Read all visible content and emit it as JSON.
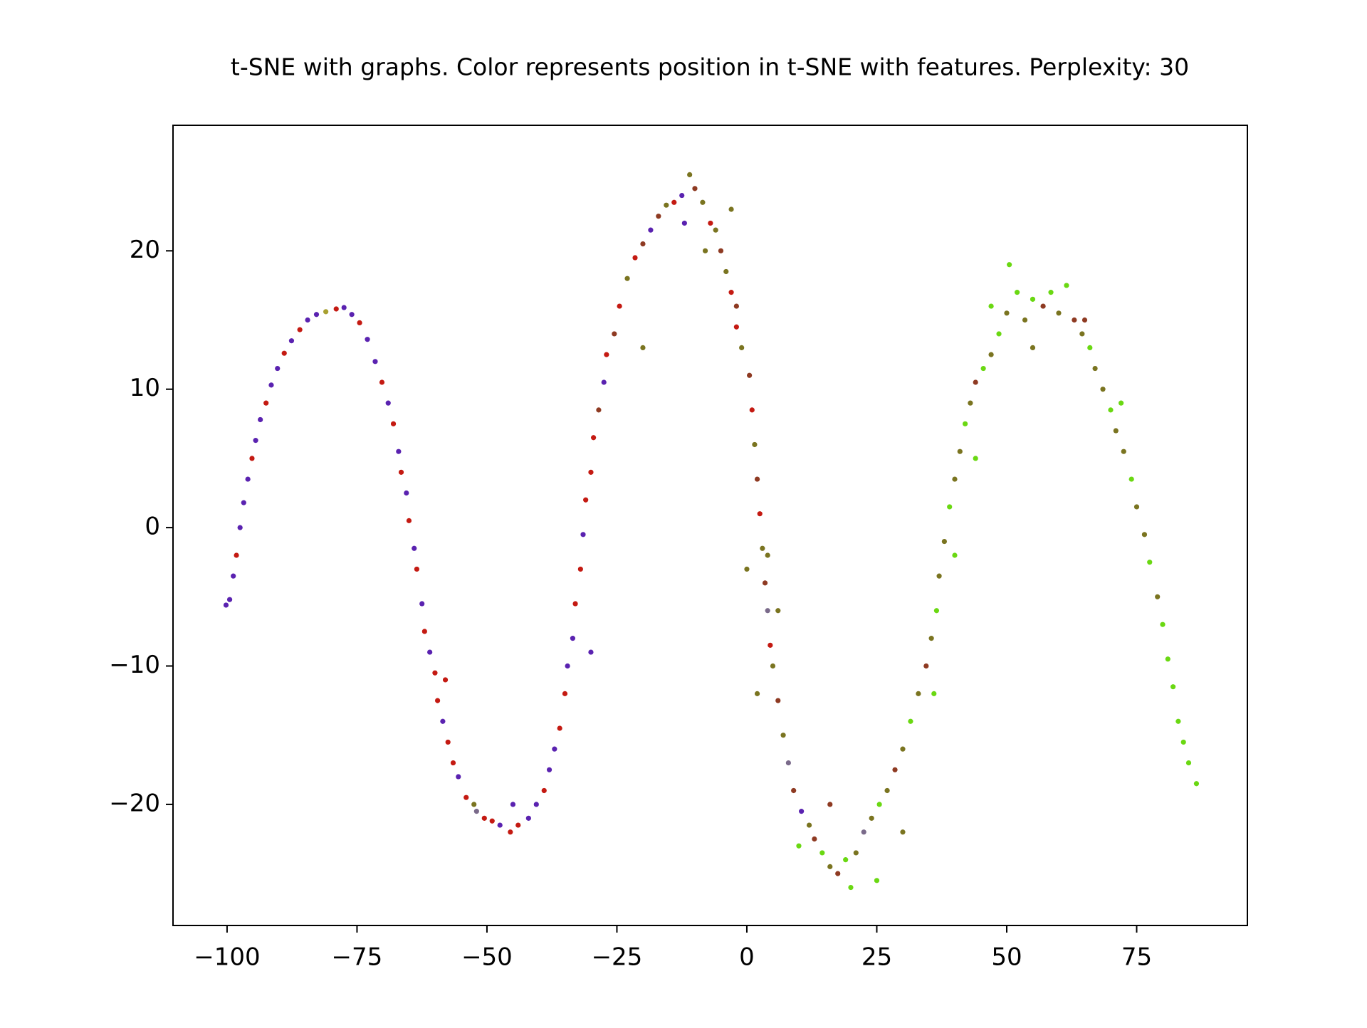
{
  "chart_data": {
    "type": "scatter",
    "title": "t-SNE with graphs. Color represents position in t-SNE with features. Perplexity: 30",
    "xlim": [
      -110.4,
      96.3
    ],
    "ylim": [
      -28.75,
      29.07
    ],
    "xticks": [
      {
        "value": -100,
        "label": "−100"
      },
      {
        "value": -75,
        "label": "−75"
      },
      {
        "value": -50,
        "label": "−50"
      },
      {
        "value": -25,
        "label": "−25"
      },
      0,
      25,
      50,
      75
    ],
    "yticks": [
      {
        "value": -20,
        "label": "−20"
      },
      {
        "value": -10,
        "label": "−10"
      },
      0,
      10,
      20
    ],
    "grid": false,
    "series": [
      {
        "x": [
          -100.2,
          -99.5,
          -98.8,
          -98.2,
          -97.5,
          -96.8,
          -96,
          -95.2,
          -94.5,
          -93.6,
          -92.5,
          -91.5,
          -90.3,
          -89,
          -87.6,
          -86,
          -84.5,
          -82.8,
          -81,
          -79,
          -77.5,
          -76,
          -74.5,
          -73,
          -71.5,
          -70.2,
          -69,
          -68,
          -67,
          -66.5,
          -65.5,
          -65,
          -64,
          -63.5,
          -62.5,
          -62,
          -61,
          -60,
          -59.5,
          -58.5,
          -57.5,
          -56.5,
          -55.5,
          -54,
          -52.5,
          -52,
          -50.5,
          -49,
          -47.5,
          -45.5,
          -44,
          -42,
          -40.5,
          -39,
          -38,
          -37,
          -36,
          -35,
          -34.5,
          -33.5,
          -33,
          -32,
          -31.5,
          -31,
          -30,
          -29.5,
          -28.5,
          -27.5,
          -27,
          -25.5,
          -24.5,
          -23,
          -21.5,
          -20,
          -18.5,
          -17,
          -15.5,
          -14,
          -12.5,
          -11,
          -10,
          -8.5,
          -7,
          -6,
          -5,
          -4,
          -3,
          -2,
          -1,
          0.5,
          1,
          1.5,
          2,
          2.5,
          3,
          3.5,
          4,
          4.5,
          5,
          6,
          7,
          8,
          9,
          10.5,
          12,
          13,
          14.5,
          16,
          17.5,
          19,
          21,
          22.5,
          24,
          25.5,
          27,
          28.5,
          30,
          31.5,
          33,
          34.5,
          35.5,
          36.5,
          37,
          38,
          39,
          40,
          41,
          42,
          43,
          44,
          45.5,
          47,
          48.5,
          50,
          50.5,
          52,
          53.5,
          55,
          57,
          58.5,
          60,
          61.5,
          63,
          64.5,
          66,
          67,
          68.5,
          70,
          71,
          72.5,
          74,
          75,
          76.5,
          77.5,
          79,
          80,
          81,
          82,
          83,
          84,
          85,
          86.5,
          -2,
          4,
          2,
          10,
          20,
          25,
          16,
          30,
          44,
          36,
          40,
          55,
          65,
          -20,
          -8,
          -30,
          -45,
          -58,
          0,
          6,
          -3,
          -12,
          47,
          72
        ],
        "values": [
          -5.6,
          -5.2,
          -3.5,
          -2,
          0,
          1.8,
          3.5,
          5,
          6.3,
          7.8,
          9,
          10.3,
          11.5,
          12.6,
          13.5,
          14.3,
          15,
          15.4,
          15.6,
          15.8,
          15.9,
          15.4,
          14.8,
          13.6,
          12,
          10.5,
          9,
          7.5,
          5.5,
          4,
          2.5,
          0.5,
          -1.5,
          -3,
          -5.5,
          -7.5,
          -9,
          -10.5,
          -12.5,
          -14,
          -15.5,
          -17,
          -18,
          -19.5,
          -20,
          -20.5,
          -21,
          -21.2,
          -21.5,
          -22,
          -21.5,
          -21,
          -20,
          -19,
          -17.5,
          -16,
          -14.5,
          -12,
          -10,
          -8,
          -5.5,
          -3,
          -0.5,
          2,
          4,
          6.5,
          8.5,
          10.5,
          12.5,
          14,
          16,
          18,
          19.5,
          20.5,
          21.5,
          22.5,
          23.3,
          23.5,
          24,
          25.5,
          24.5,
          23.5,
          22,
          21.5,
          20,
          18.5,
          17,
          14.5,
          13,
          11,
          8.5,
          6,
          3.5,
          1,
          -1.5,
          -4,
          -6,
          -8.5,
          -10,
          -12.5,
          -15,
          -17,
          -19,
          -20.5,
          -21.5,
          -22.5,
          -23.5,
          -24.5,
          -25,
          -24,
          -23.5,
          -22,
          -21,
          -20,
          -19,
          -17.5,
          -16,
          -14,
          -12,
          -10,
          -8,
          -6,
          -3.5,
          -1,
          1.5,
          3.5,
          5.5,
          7.5,
          9,
          10.5,
          11.5,
          12.5,
          14,
          15.5,
          19,
          17,
          15,
          16.5,
          16,
          17,
          15.5,
          17.5,
          15,
          14,
          13,
          11.5,
          10,
          8.5,
          7,
          5.5,
          3.5,
          1.5,
          -0.5,
          -2.5,
          -5,
          -7,
          -9.5,
          -11.5,
          -14,
          -15.5,
          -17,
          -18.5,
          16,
          -2,
          -12,
          -23,
          -26,
          -25.5,
          -20,
          -22,
          5,
          -12,
          -2,
          13,
          15,
          13,
          20,
          -9,
          -20,
          -11,
          -3,
          -6,
          23,
          22,
          16,
          9
        ],
        "colors": [
          "#5a22b0",
          "#5a22b0",
          "#5a22b0",
          "#c41a12",
          "#5a22b0",
          "#5a22b0",
          "#5a22b0",
          "#c41a12",
          "#5a22b0",
          "#5a22b0",
          "#c41a12",
          "#5a22b0",
          "#5a22b0",
          "#c41a12",
          "#5a22b0",
          "#c41a12",
          "#5a22b0",
          "#5a22b0",
          "#a8a030",
          "#c41a12",
          "#5a22b0",
          "#5a22b0",
          "#c41a12",
          "#5a22b0",
          "#5a22b0",
          "#c41a12",
          "#5a22b0",
          "#c41a12",
          "#5a22b0",
          "#c41a12",
          "#5a22b0",
          "#c41a12",
          "#5a22b0",
          "#c41a12",
          "#5a22b0",
          "#c41a12",
          "#5a22b0",
          "#c41a12",
          "#c41a12",
          "#5a22b0",
          "#c41a12",
          "#c41a12",
          "#5a22b0",
          "#c41a12",
          "#7a7420",
          "#7a6a8a",
          "#c41a12",
          "#c41a12",
          "#5a22b0",
          "#c41a12",
          "#c41a12",
          "#5a22b0",
          "#5a22b0",
          "#c41a12",
          "#5a22b0",
          "#5a22b0",
          "#c41a12",
          "#c41a12",
          "#5a22b0",
          "#5a22b0",
          "#c41a12",
          "#c41a12",
          "#5a22b0",
          "#c41a12",
          "#c41a12",
          "#c41a12",
          "#8e3a22",
          "#5a22b0",
          "#c41a12",
          "#8e3a22",
          "#c41a12",
          "#7a7420",
          "#c41a12",
          "#8e3a22",
          "#5a22b0",
          "#8e3a22",
          "#7a7420",
          "#c41a12",
          "#5a22b0",
          "#7a7420",
          "#8e3a22",
          "#7a7420",
          "#c41a12",
          "#7a7420",
          "#8e3a22",
          "#7a7420",
          "#c41a12",
          "#c41a12",
          "#7a7420",
          "#8e3a22",
          "#c41a12",
          "#7a7420",
          "#8e3a22",
          "#c41a12",
          "#7a7420",
          "#8e3a22",
          "#7a6a8a",
          "#c41a12",
          "#7a7420",
          "#8e3a22",
          "#7a7420",
          "#7a6a8a",
          "#8e3a22",
          "#5a22b0",
          "#7a7420",
          "#8e3a22",
          "#6ad812",
          "#7a7420",
          "#8e3a22",
          "#6ad812",
          "#7a7420",
          "#7a6a8a",
          "#7a7420",
          "#6ad812",
          "#7a7420",
          "#8e3a22",
          "#7a7420",
          "#6ad812",
          "#7a7420",
          "#8e3a22",
          "#7a7420",
          "#6ad812",
          "#7a7420",
          "#7a7420",
          "#6ad812",
          "#7a7420",
          "#7a7420",
          "#6ad812",
          "#7a7420",
          "#8e3a22",
          "#6ad812",
          "#7a7420",
          "#6ad812",
          "#7a7420",
          "#6ad812",
          "#6ad812",
          "#7a7420",
          "#6ad812",
          "#8e3a22",
          "#6ad812",
          "#7a7420",
          "#6ad812",
          "#8e3a22",
          "#7a7420",
          "#6ad812",
          "#7a7420",
          "#7a7420",
          "#6ad812",
          "#7a7420",
          "#7a7420",
          "#6ad812",
          "#7a7420",
          "#7a7420",
          "#6ad812",
          "#7a7420",
          "#6ad812",
          "#6ad812",
          "#6ad812",
          "#6ad812",
          "#6ad812",
          "#6ad812",
          "#6ad812",
          "#8e3a22",
          "#7a7420",
          "#7a7420",
          "#6ad812",
          "#6ad812",
          "#6ad812",
          "#8e3a22",
          "#7a7420",
          "#6ad812",
          "#6ad812",
          "#6ad812",
          "#7a7420",
          "#8e3a22",
          "#7a7420",
          "#7a7420",
          "#5a22b0",
          "#5a22b0",
          "#c41a12",
          "#7a7420",
          "#7a7420",
          "#7a7420",
          "#5a22b0",
          "#6ad812",
          "#6ad812"
        ]
      }
    ]
  }
}
